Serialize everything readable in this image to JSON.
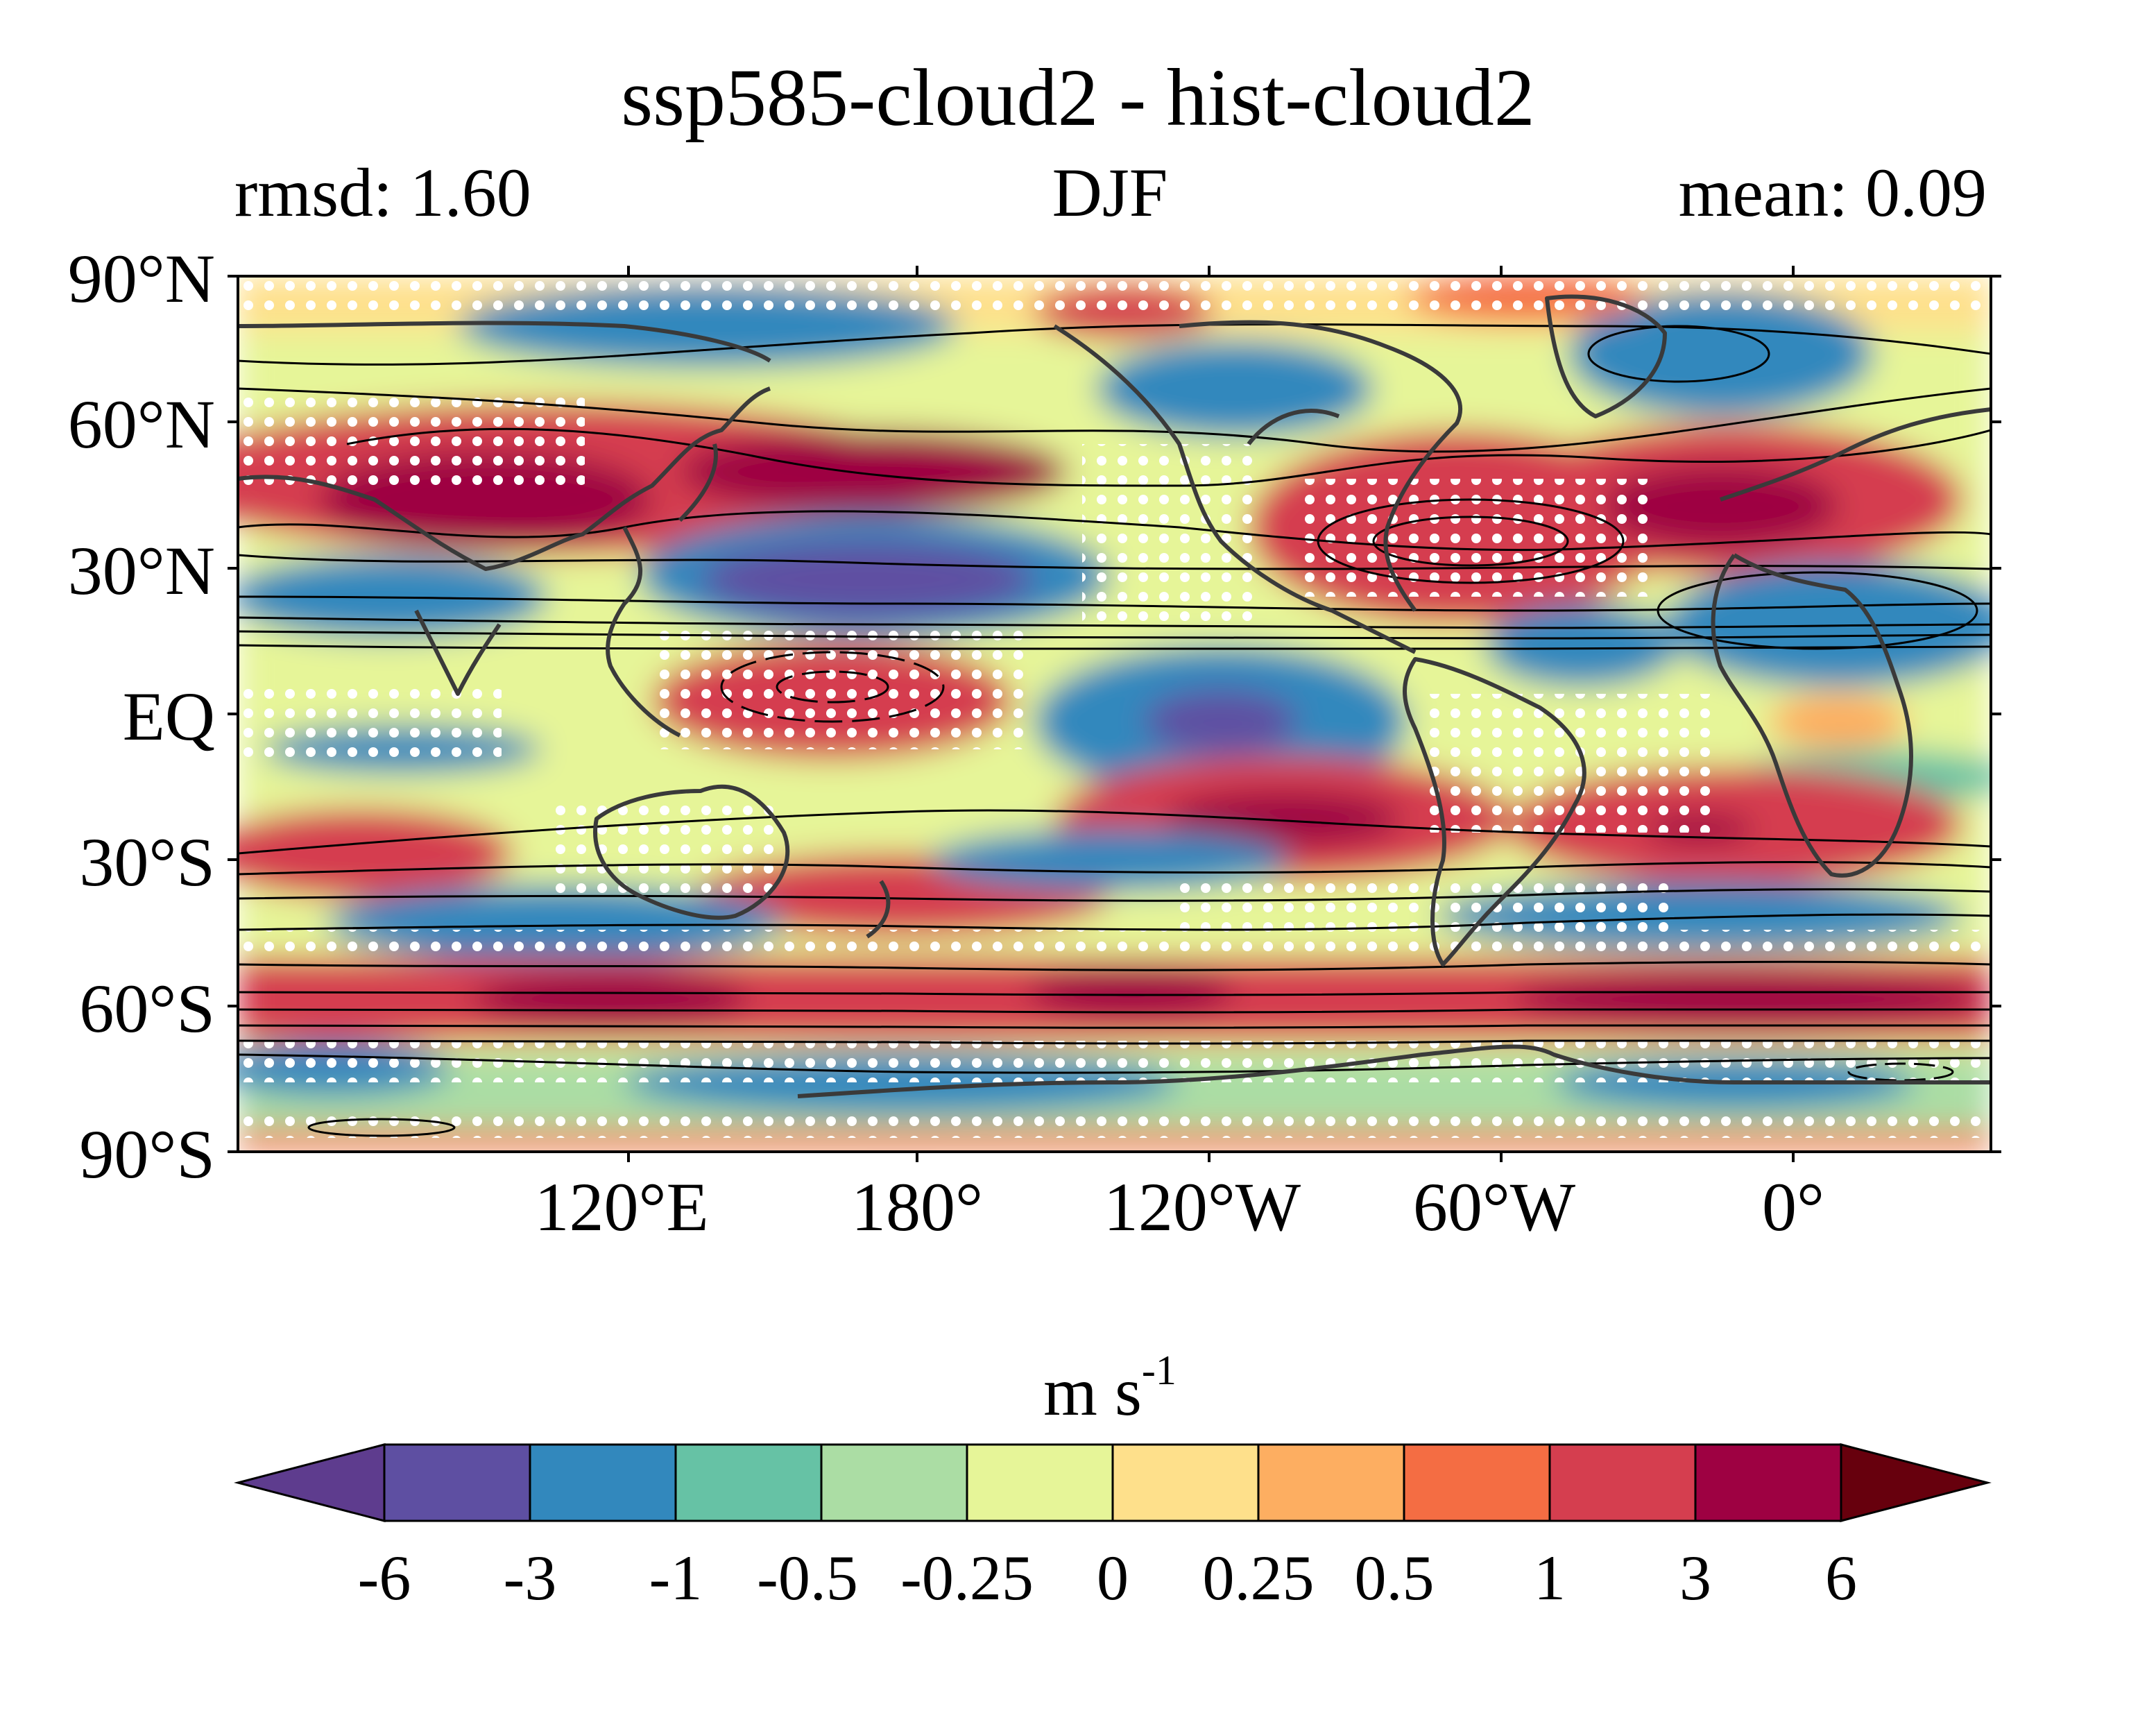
{
  "title": "ssp585-cloud2 - hist-cloud2",
  "stats": {
    "left": "rmsd: 1.60",
    "center": "DJF",
    "right": "mean: 0.09"
  },
  "lat_ticks": [
    "90°N",
    "60°N",
    "30°N",
    "EQ",
    "30°S",
    "60°S",
    "90°S"
  ],
  "lon_ticks": [
    "120°E",
    "180°",
    "120°W",
    "60°W",
    "0°"
  ],
  "colorbar": {
    "unit_base": "m s",
    "unit_exp": "-1",
    "ticks": [
      "-6",
      "-3",
      "-1",
      "-0.5",
      "-0.25",
      "0",
      "0.25",
      "0.5",
      "1",
      "3",
      "6"
    ],
    "colors": [
      "#5e4fa2",
      "#3288bd",
      "#66c2a5",
      "#abdda4",
      "#e6f598",
      "#fee08b",
      "#fdae61",
      "#f46d43",
      "#d53e4f",
      "#9e0142"
    ],
    "under_color": "#5e3c8e",
    "over_color": "#67000d"
  },
  "colors": {
    "stipple": "#ffffff",
    "coastline": "#3a3a3a",
    "contour": "#000000"
  }
}
